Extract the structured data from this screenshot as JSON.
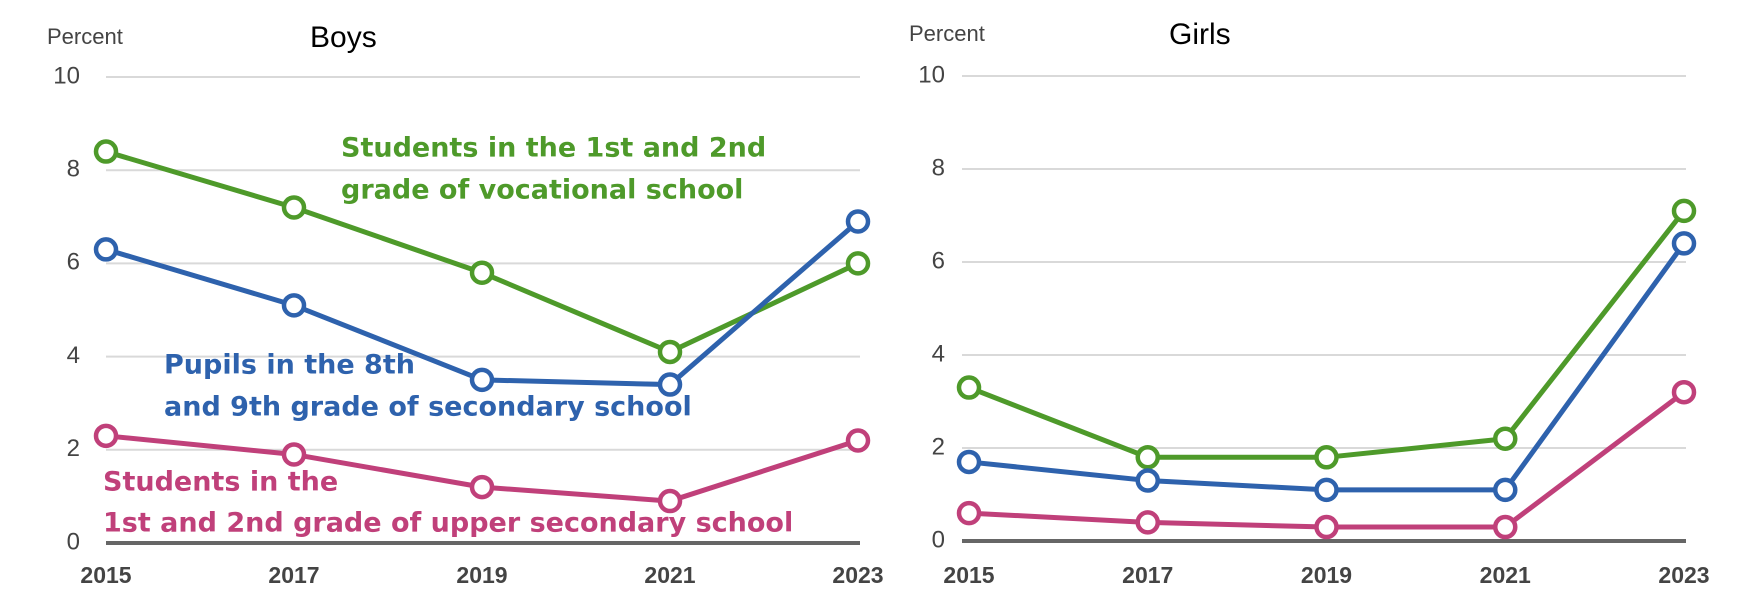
{
  "chart_data": [
    {
      "type": "line",
      "title": "Boys",
      "ylabel": "Percent",
      "x": [
        2015,
        2017,
        2019,
        2021,
        2023
      ],
      "xticks": [
        2015,
        2017,
        2019,
        2021,
        2023
      ],
      "ylim": [
        0,
        10
      ],
      "yticks": [
        0,
        2,
        4,
        6,
        8,
        10
      ],
      "grid": true,
      "series": [
        {
          "label_lines": [
            "Students in the 1st and 2nd",
            "grade of vocational school"
          ],
          "color": "#4e9a2a",
          "values": [
            8.4,
            7.2,
            5.8,
            4.1,
            6.0
          ]
        },
        {
          "label_lines": [
            "Pupils in the 8th",
            "and 9th grade of secondary school"
          ],
          "color": "#2e62ad",
          "values": [
            6.3,
            5.1,
            3.5,
            3.4,
            6.9
          ]
        },
        {
          "label_lines": [
            "Students in the",
            "1st and 2nd grade of upper secondary school"
          ],
          "color": "#c0407a",
          "values": [
            2.3,
            1.9,
            1.2,
            0.9,
            2.2
          ]
        }
      ]
    },
    {
      "type": "line",
      "title": "Girls",
      "ylabel": "Percent",
      "x": [
        2015,
        2017,
        2019,
        2021,
        2023
      ],
      "xticks": [
        2015,
        2017,
        2019,
        2021,
        2023
      ],
      "ylim": [
        0,
        10
      ],
      "yticks": [
        0,
        2,
        4,
        6,
        8,
        10
      ],
      "grid": true,
      "series": [
        {
          "color": "#4e9a2a",
          "values": [
            3.3,
            1.8,
            1.8,
            2.2,
            7.1
          ]
        },
        {
          "color": "#2e62ad",
          "values": [
            1.7,
            1.3,
            1.1,
            1.1,
            6.4
          ]
        },
        {
          "color": "#c0407a",
          "values": [
            0.6,
            0.4,
            0.3,
            0.3,
            3.2
          ]
        }
      ]
    }
  ]
}
